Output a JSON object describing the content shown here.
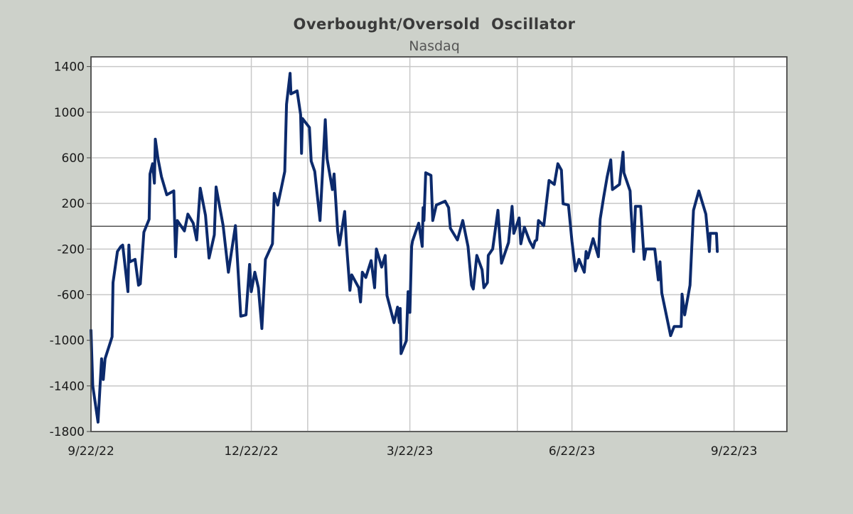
{
  "chart_data": {
    "type": "line",
    "title": "Overbought/Oversold  Oscillator",
    "subtitle": "Nasdaq",
    "xlabel": "",
    "ylabel": "",
    "x_unit": "days since 9/22/22",
    "xlim": [
      0,
      395
    ],
    "ylim": [
      -1800,
      1485
    ],
    "yticks": [
      1400,
      1000,
      600,
      200,
      -200,
      -600,
      -1000,
      -1400,
      -1800
    ],
    "ytick_labels": [
      "1400",
      "1000",
      "600",
      "200",
      "-200",
      "-600",
      "-1000",
      "-1400",
      "-1800"
    ],
    "xticks": [
      0,
      91,
      181,
      273,
      365
    ],
    "xtick_labels": [
      "9/22/22",
      "12/22/22",
      "3/22/23",
      "6/22/23",
      "9/22/23"
    ],
    "x_gridlines": [
      91,
      123,
      181,
      242,
      273,
      365
    ],
    "reference_line": 0,
    "grid": true,
    "colors": {
      "line": "#0c2a6c",
      "background": "#cdd1ca",
      "plot": "#ffffff",
      "grid": "#c8c8c8"
    },
    "series": [
      {
        "name": "Nasdaq",
        "points": [
          [
            0,
            -913
          ],
          [
            1,
            -1400
          ],
          [
            4,
            -1718
          ],
          [
            6,
            -1162
          ],
          [
            7,
            -1344
          ],
          [
            8,
            -1162
          ],
          [
            12,
            -970
          ],
          [
            12.5,
            -494
          ],
          [
            15,
            -222
          ],
          [
            17,
            -177
          ],
          [
            18,
            -165
          ],
          [
            21,
            -573
          ],
          [
            21.5,
            -165
          ],
          [
            22,
            -313
          ],
          [
            25,
            -290
          ],
          [
            27,
            -517
          ],
          [
            28,
            -505
          ],
          [
            30,
            -52
          ],
          [
            33,
            61
          ],
          [
            33.5,
            458
          ],
          [
            35,
            548
          ],
          [
            36,
            378
          ],
          [
            36.5,
            764
          ],
          [
            38,
            594
          ],
          [
            40,
            435
          ],
          [
            43,
            276
          ],
          [
            47,
            310
          ],
          [
            48,
            -267
          ],
          [
            49,
            50
          ],
          [
            53,
            -41
          ],
          [
            55,
            106
          ],
          [
            58,
            27
          ],
          [
            60,
            -120
          ],
          [
            62,
            333
          ],
          [
            65,
            95
          ],
          [
            67,
            -279
          ],
          [
            70,
            -75
          ],
          [
            71,
            344
          ],
          [
            75,
            5
          ],
          [
            78,
            -403
          ],
          [
            82,
            5
          ],
          [
            85,
            -789
          ],
          [
            88,
            -777
          ],
          [
            90,
            -335
          ],
          [
            91,
            -573
          ],
          [
            93,
            -403
          ],
          [
            95,
            -539
          ],
          [
            97,
            -897
          ],
          [
            99,
            -290
          ],
          [
            103,
            -154
          ],
          [
            104,
            288
          ],
          [
            106,
            186
          ],
          [
            108,
            333
          ],
          [
            110,
            480
          ],
          [
            111,
            1070
          ],
          [
            113,
            1341
          ],
          [
            113.5,
            1160
          ],
          [
            117,
            1187
          ],
          [
            119,
            979
          ],
          [
            119.5,
            639
          ],
          [
            120,
            945
          ],
          [
            124,
            866
          ],
          [
            125,
            571
          ],
          [
            127,
            480
          ],
          [
            130,
            50
          ],
          [
            133,
            934
          ],
          [
            134,
            594
          ],
          [
            137,
            322
          ],
          [
            138,
            458
          ],
          [
            140,
            -41
          ],
          [
            141,
            -165
          ],
          [
            144,
            129
          ],
          [
            145,
            -154
          ],
          [
            147,
            -562
          ],
          [
            148,
            -426
          ],
          [
            152,
            -539
          ],
          [
            153,
            -664
          ],
          [
            154,
            -403
          ],
          [
            156,
            -449
          ],
          [
            159,
            -301
          ],
          [
            161,
            -539
          ],
          [
            162,
            -199
          ],
          [
            165,
            -358
          ],
          [
            167,
            -256
          ],
          [
            168,
            -607
          ],
          [
            172,
            -845
          ],
          [
            174,
            -709
          ],
          [
            175,
            -845
          ],
          [
            175.5,
            -721
          ],
          [
            176,
            -1117
          ],
          [
            179,
            -1004
          ],
          [
            180,
            -573
          ],
          [
            181,
            -755
          ],
          [
            182,
            -177
          ],
          [
            182.5,
            -131
          ],
          [
            186,
            27
          ],
          [
            188,
            -177
          ],
          [
            188.5,
            163
          ],
          [
            189,
            50
          ],
          [
            190,
            469
          ],
          [
            193,
            446
          ],
          [
            194,
            50
          ],
          [
            196,
            186
          ],
          [
            201,
            220
          ],
          [
            203,
            163
          ],
          [
            204,
            -18
          ],
          [
            208,
            -120
          ],
          [
            211,
            50
          ],
          [
            214,
            -177
          ],
          [
            216,
            -517
          ],
          [
            217,
            -551
          ],
          [
            219,
            -256
          ],
          [
            222,
            -381
          ],
          [
            223,
            -539
          ],
          [
            225,
            -494
          ],
          [
            225.5,
            -256
          ],
          [
            228,
            -199
          ],
          [
            231,
            140
          ],
          [
            233,
            -324
          ],
          [
            237,
            -143
          ],
          [
            239,
            174
          ],
          [
            240,
            -63
          ],
          [
            243,
            73
          ],
          [
            244,
            -154
          ],
          [
            246,
            -7
          ],
          [
            249,
            -131
          ],
          [
            251,
            -188
          ],
          [
            252,
            -131
          ],
          [
            253,
            -120
          ],
          [
            254,
            50
          ],
          [
            257,
            5
          ],
          [
            260,
            401
          ],
          [
            263,
            367
          ],
          [
            265,
            548
          ],
          [
            267,
            492
          ],
          [
            268,
            197
          ],
          [
            271,
            186
          ],
          [
            273,
            -131
          ],
          [
            275,
            -392
          ],
          [
            277,
            -290
          ],
          [
            280,
            -403
          ],
          [
            281,
            -222
          ],
          [
            282,
            -279
          ],
          [
            285,
            -109
          ],
          [
            288,
            -267
          ],
          [
            289,
            61
          ],
          [
            291,
            254
          ],
          [
            293,
            435
          ],
          [
            295,
            582
          ],
          [
            296,
            322
          ],
          [
            300,
            367
          ],
          [
            302,
            650
          ],
          [
            302.5,
            469
          ],
          [
            306,
            310
          ],
          [
            306.5,
            140
          ],
          [
            308,
            -222
          ],
          [
            309,
            174
          ],
          [
            312,
            174
          ],
          [
            314,
            -290
          ],
          [
            315,
            -199
          ],
          [
            320,
            -199
          ],
          [
            322,
            -471
          ],
          [
            323,
            -313
          ],
          [
            324,
            -585
          ],
          [
            329,
            -959
          ],
          [
            331,
            -879
          ],
          [
            335,
            -879
          ],
          [
            335.5,
            -596
          ],
          [
            337,
            -777
          ],
          [
            340,
            -517
          ],
          [
            342,
            140
          ],
          [
            345,
            310
          ],
          [
            349,
            106
          ],
          [
            351,
            -222
          ],
          [
            351.5,
            -63
          ],
          [
            355,
            -63
          ],
          [
            355.5,
            -222
          ]
        ]
      }
    ]
  }
}
